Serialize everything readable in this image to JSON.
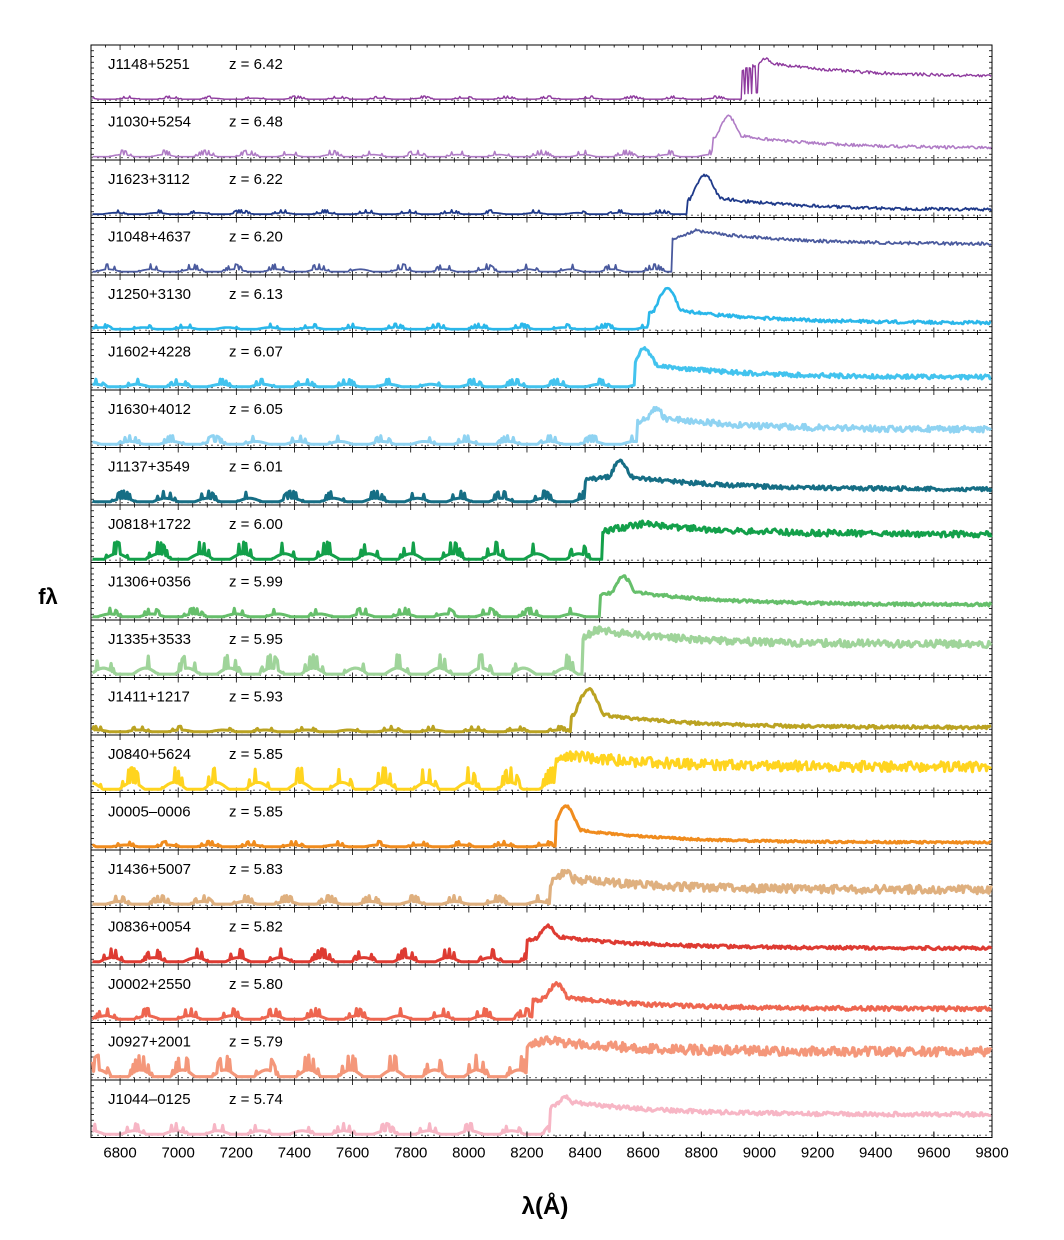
{
  "chart_data": {
    "type": "line",
    "xlabel": "λ(Å)",
    "ylabel": "fλ",
    "xlim": [
      6700,
      9800
    ],
    "x_ticks": [
      6800,
      7000,
      7200,
      7400,
      7600,
      7800,
      8000,
      8200,
      8400,
      8600,
      8800,
      9000,
      9200,
      9400,
      9600,
      9800
    ],
    "panel_ylim": [
      0,
      1
    ],
    "zero_line_style": "dotted",
    "grid": false,
    "legend": "none",
    "series": [
      {
        "name": "J1148+5251",
        "redshift_label": "z = 6.42",
        "color": "#8E3A9E",
        "line_width": 1.4,
        "noise": 0.03,
        "break": 8940,
        "peak": 9020,
        "peak_amp": 0.82,
        "plateau_amp": 0.45,
        "forest_level": 0.03,
        "absorber": 8965
      },
      {
        "name": "J1030+5254",
        "redshift_label": "z = 6.48",
        "color": "#B07CC6",
        "line_width": 1.6,
        "noise": 0.03,
        "break": 8840,
        "peak": 8890,
        "peak_amp": 0.8,
        "plateau_amp": 0.18,
        "forest_level": 0.06
      },
      {
        "name": "J1623+3112",
        "redshift_label": "z = 6.22",
        "color": "#1F3A8A",
        "line_width": 1.8,
        "noise": 0.03,
        "break": 8750,
        "peak": 8810,
        "peak_amp": 0.78,
        "plateau_amp": 0.1,
        "forest_level": 0.04
      },
      {
        "name": "J1048+4637",
        "redshift_label": "z = 6.20",
        "color": "#4A5A9E",
        "line_width": 1.8,
        "noise": 0.03,
        "break": 8700,
        "peak": 8780,
        "peak_amp": 0.75,
        "plateau_amp": 0.55,
        "forest_level": 0.07
      },
      {
        "name": "J1250+3130",
        "redshift_label": "z = 6.13",
        "color": "#2AB7EA",
        "line_width": 2.6,
        "noise": 0.03,
        "break": 8620,
        "peak": 8680,
        "peak_amp": 0.8,
        "plateau_amp": 0.14,
        "forest_level": 0.05
      },
      {
        "name": "J1602+4228",
        "redshift_label": "z = 6.07",
        "color": "#42C3EE",
        "line_width": 3.0,
        "noise": 0.04,
        "break": 8570,
        "peak": 8600,
        "peak_amp": 0.78,
        "plateau_amp": 0.2,
        "forest_level": 0.07
      },
      {
        "name": "J1630+4012",
        "redshift_label": "z = 6.05",
        "color": "#8FD3F2",
        "line_width": 3.0,
        "noise": 0.06,
        "break": 8580,
        "peak": 8640,
        "peak_amp": 0.72,
        "plateau_amp": 0.3,
        "forest_level": 0.08
      },
      {
        "name": "J1137+3549",
        "redshift_label": "z = 6.01",
        "color": "#166E85",
        "line_width": 3.0,
        "noise": 0.04,
        "break": 8400,
        "peak": 8520,
        "peak_amp": 0.8,
        "plateau_amp": 0.26,
        "forest_level": 0.1
      },
      {
        "name": "J0818+1722",
        "redshift_label": "z = 6.00",
        "color": "#13A04A",
        "line_width": 3.0,
        "noise": 0.06,
        "break": 8460,
        "peak": 8600,
        "peak_amp": 0.58,
        "plateau_amp": 0.5,
        "forest_level": 0.16
      },
      {
        "name": "J1306+0356",
        "redshift_label": "z = 5.99",
        "color": "#66BF6B",
        "line_width": 3.0,
        "noise": 0.03,
        "break": 8450,
        "peak": 8530,
        "peak_amp": 0.8,
        "plateau_amp": 0.25,
        "forest_level": 0.08
      },
      {
        "name": "J1335+3533",
        "redshift_label": "z = 5.95",
        "color": "#9FD49A",
        "line_width": 3.2,
        "noise": 0.07,
        "break": 8390,
        "peak": 8440,
        "peak_amp": 0.8,
        "plateau_amp": 0.6,
        "forest_level": 0.18
      },
      {
        "name": "J1411+1217",
        "redshift_label": "z = 5.93",
        "color": "#BBA322",
        "line_width": 3.0,
        "noise": 0.03,
        "break": 8350,
        "peak": 8410,
        "peak_amp": 0.85,
        "plateau_amp": 0.1,
        "forest_level": 0.05
      },
      {
        "name": "J0840+5624",
        "redshift_label": "z = 5.85",
        "color": "#FFD41F",
        "line_width": 3.0,
        "noise": 0.1,
        "break": 8300,
        "peak": 8340,
        "peak_amp": 0.65,
        "plateau_amp": 0.45,
        "forest_level": 0.2
      },
      {
        "name": "J0005–0006",
        "redshift_label": "z = 5.85",
        "color": "#F08C1E",
        "line_width": 3.0,
        "noise": 0.02,
        "break": 8300,
        "peak": 8330,
        "peak_amp": 0.82,
        "plateau_amp": 0.1,
        "forest_level": 0.05
      },
      {
        "name": "J1436+5007",
        "redshift_label": "z = 5.83",
        "color": "#DFB07F",
        "line_width": 3.2,
        "noise": 0.08,
        "break": 8280,
        "peak": 8330,
        "peak_amp": 0.65,
        "plateau_amp": 0.3,
        "forest_level": 0.08
      },
      {
        "name": "J0836+0054",
        "redshift_label": "z = 5.82",
        "color": "#DE3B32",
        "line_width": 3.0,
        "noise": 0.03,
        "break": 8200,
        "peak": 8270,
        "peak_amp": 0.72,
        "plateau_amp": 0.28,
        "forest_level": 0.12
      },
      {
        "name": "J0002+2550",
        "redshift_label": "z = 5.80",
        "color": "#EE6650",
        "line_width": 3.0,
        "noise": 0.04,
        "break": 8220,
        "peak": 8300,
        "peak_amp": 0.7,
        "plateau_amp": 0.22,
        "forest_level": 0.1
      },
      {
        "name": "J0927+2001",
        "redshift_label": "z = 5.79",
        "color": "#F4977A",
        "line_width": 3.2,
        "noise": 0.09,
        "break": 8200,
        "peak": 8260,
        "peak_amp": 0.65,
        "plateau_amp": 0.5,
        "forest_level": 0.2
      },
      {
        "name": "J1044–0125",
        "redshift_label": "z = 5.74",
        "color": "#F7B6C5",
        "line_width": 3.0,
        "noise": 0.04,
        "break": 8280,
        "peak": 8330,
        "peak_amp": 0.75,
        "plateau_amp": 0.4,
        "forest_level": 0.1
      }
    ]
  }
}
